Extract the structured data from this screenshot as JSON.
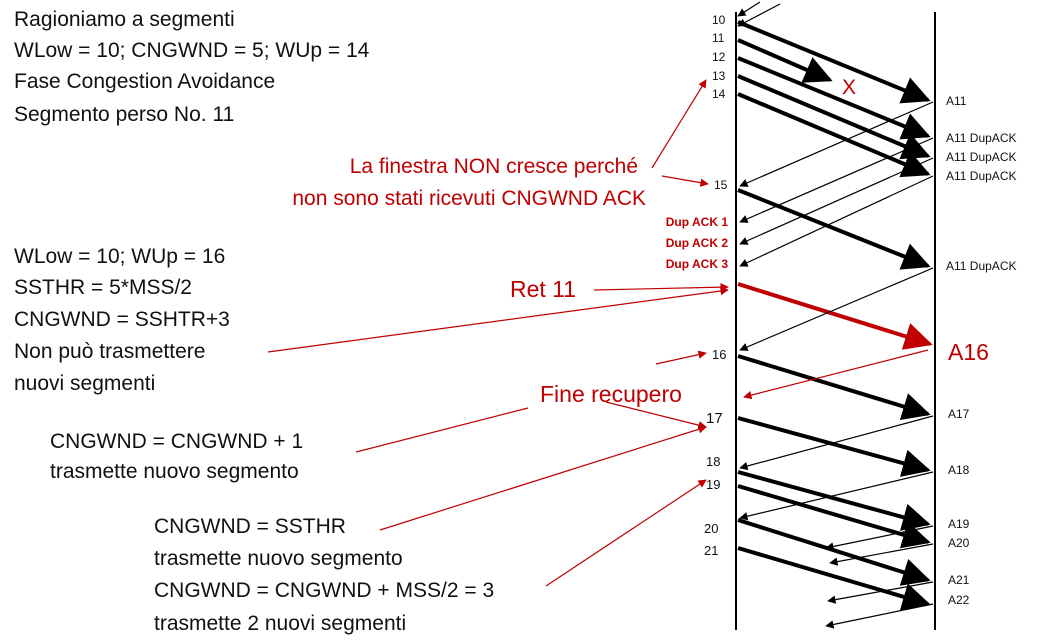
{
  "left_notes": {
    "block1": [
      "Ragioniamo a segmenti",
      "WLow = 10; CNGWND = 5; WUp = 14",
      "Fase Congestion Avoidance",
      "Segmento perso No. 11"
    ],
    "block2": [
      "WLow = 10; WUp = 16",
      "SSTHR = 5*MSS/2",
      "CNGWND = SSHTR+3",
      "Non può trasmettere",
      "nuovi segmenti"
    ],
    "block3": [
      "CNGWND = CNGWND + 1",
      "trasmette nuovo  segmento"
    ],
    "block4": [
      "CNGWND = SSTHR",
      "trasmette nuovo  segmento",
      "CNGWND = CNGWND + MSS/2 = 3",
      "trasmette 2 nuovi segmenti"
    ]
  },
  "red_notes": {
    "window_note": [
      "La finestra NON cresce perché",
      "non sono stati ricevuti CNGWND ACK"
    ],
    "retransmit": "Ret 11",
    "recovery_end": "Fine recupero",
    "ack16": "A16",
    "loss_mark": "X"
  },
  "dup_acks": [
    "Dup ACK 1",
    "Dup ACK 2",
    "Dup ACK 3"
  ],
  "sender_segments": [
    "10",
    "11",
    "12",
    "13",
    "14",
    "15",
    "16",
    "17",
    "18",
    "19",
    "20",
    "21"
  ],
  "receiver_acks": [
    "A11",
    "A11 DupACK",
    "A11 DupACK",
    "A11 DupACK",
    "A11 DupACK",
    "A17",
    "A18",
    "A19",
    "A20",
    "A21",
    "A22"
  ],
  "colors": {
    "accent_red": "#c00000",
    "line": "#000000"
  }
}
